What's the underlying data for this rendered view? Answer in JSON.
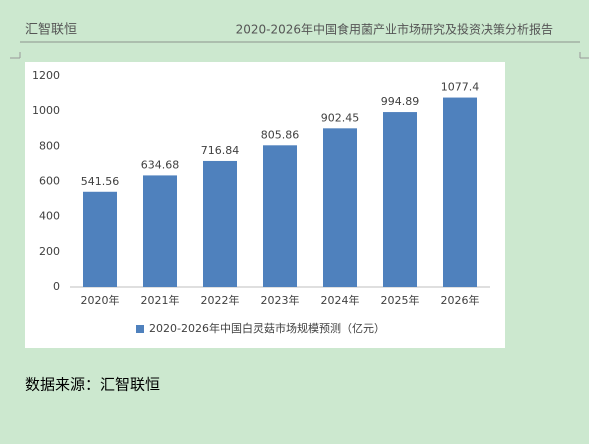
{
  "header": {
    "left": "汇智联恒",
    "right": "2020-2026年中国食用菌产业市场研究及投资决策分析报告"
  },
  "chart_data": {
    "type": "bar",
    "categories": [
      "2020年",
      "2021年",
      "2022年",
      "2023年",
      "2024年",
      "2025年",
      "2026年"
    ],
    "series": [
      {
        "name": "2020-2026年中国白灵菇市场规模预测（亿元）",
        "color": "#4f81bd",
        "values": [
          541.56,
          634.68,
          716.84,
          805.86,
          902.45,
          994.89,
          1077.4
        ]
      }
    ],
    "ylim": [
      0,
      1200
    ],
    "yticks": [
      0,
      200,
      400,
      600,
      800,
      1000,
      1200
    ],
    "grid": false,
    "legend": "bottom"
  },
  "source": "数据来源：汇智联恒"
}
